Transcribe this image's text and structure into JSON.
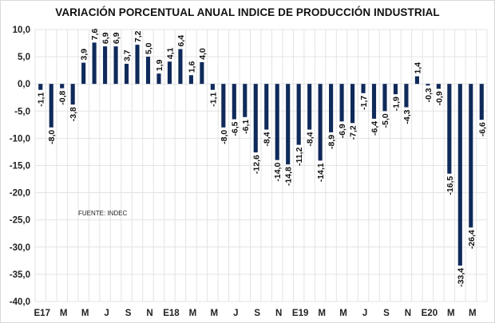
{
  "chart_data": {
    "type": "bar",
    "title": "VARIACIÓN PORCENTUAL ANUAL INDICE DE PRODUCCIÓN INDUSTRIAL",
    "xlabel": "",
    "ylabel": "",
    "ylim": [
      -40,
      10
    ],
    "yticks": [
      10,
      5,
      0,
      -5,
      -10,
      -15,
      -20,
      -25,
      -30,
      -35,
      -40
    ],
    "ytick_labels": [
      "10,0",
      "5,0",
      "0,0",
      "-5,0",
      "-10,0",
      "-15,0",
      "-20,0",
      "-25,0",
      "-30,0",
      "-35,0",
      "-40,0"
    ],
    "grid": true,
    "bar_color": "#0f2a5a",
    "categories": [
      "E17",
      "F17",
      "M17",
      "A17",
      "M17",
      "J17",
      "J17",
      "A17",
      "S17",
      "O17",
      "N17",
      "D17",
      "E18",
      "F18",
      "M18",
      "A18",
      "M18",
      "J18",
      "J18",
      "A18",
      "S18",
      "O18",
      "N18",
      "D18",
      "E19",
      "F19",
      "M19",
      "A19",
      "M19",
      "J19",
      "J19",
      "A19",
      "S19",
      "O19",
      "N19",
      "D19",
      "E20",
      "F20",
      "M20",
      "A20",
      "M20",
      "J20"
    ],
    "x_tick_labels": [
      "E17",
      "M",
      "M",
      "J",
      "S",
      "N",
      "E18",
      "M",
      "M",
      "J",
      "S",
      "N",
      "E19",
      "M",
      "M",
      "J",
      "S",
      "N",
      "E20",
      "M",
      "M"
    ],
    "values": [
      -1.1,
      -8.0,
      -0.8,
      -3.8,
      3.9,
      7.6,
      6.9,
      6.9,
      3.7,
      7.2,
      5.0,
      1.9,
      4.1,
      6.4,
      1.6,
      4.0,
      -1.1,
      -8.0,
      -6.5,
      -6.1,
      -12.6,
      -8.4,
      -14.0,
      -14.8,
      -11.2,
      -8.4,
      -14.1,
      -8.9,
      -6.9,
      -7.2,
      -1.7,
      -6.4,
      -5.0,
      -1.9,
      -4.3,
      1.4,
      -0.3,
      -0.9,
      -16.5,
      -33.4,
      -26.4,
      -6.6
    ],
    "data_labels": [
      "-1,1",
      "-8,0",
      "-0,8",
      "-3,8",
      "3,9",
      "7,6",
      "6,9",
      "6,9",
      "3,7",
      "7,2",
      "5,0",
      "1,9",
      "4,1",
      "6,4",
      "1,6",
      "4,0",
      "-1,1",
      "-8,0",
      "-6,5",
      "-6,1",
      "-12,6",
      "-8,4",
      "-14,0",
      "-14,8",
      "-11,2",
      "-8,4",
      "-14,1",
      "-8,9",
      "-6,9",
      "-7,2",
      "-1,7",
      "-6,4",
      "-5,0",
      "-1,9",
      "-4,3",
      "1,4",
      "-0,3",
      "-0,9",
      "-16,5",
      "-33,4",
      "-26,4",
      "-6,6"
    ],
    "annotations": [
      "FUENTE: INDEC"
    ]
  },
  "note": "FUENTE: INDEC"
}
